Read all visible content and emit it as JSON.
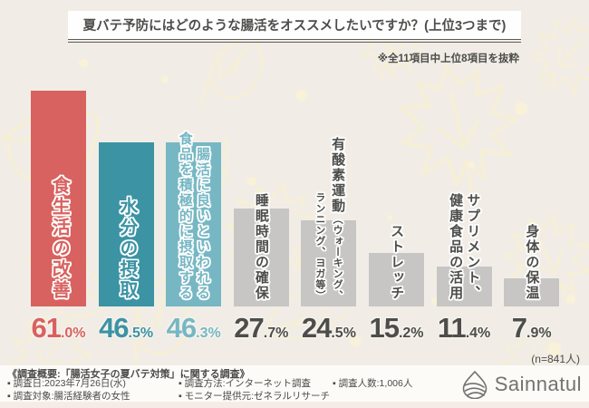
{
  "header": {
    "title": "夏バテ予防にはどのような腸活をオススメしたいですか？(上位3つまで)",
    "note": "※全11項目中上位8項目を抜粋"
  },
  "chart_data": {
    "type": "bar",
    "title": "夏バテ予防にはどのような腸活をオススメしたいですか？(上位3つまで)",
    "unit": "%",
    "ylim": [
      0,
      65
    ],
    "grid": false,
    "legend": "none",
    "sample_note": "(n=841人)",
    "categories": [
      "食生活の改善",
      "水分の摂取",
      "腸活に良いといわれる食品を積極的に摂取する",
      "睡眠時間の確保",
      "有酸素運動（ウォーキング、ランニング、ヨガ等）",
      "ストレッチ",
      "サプリメント、健康食品の活用",
      "身体の保温"
    ],
    "values": [
      61.0,
      46.5,
      46.3,
      27.7,
      24.5,
      15.2,
      11.4,
      7.9
    ],
    "colors": [
      "#d8625f",
      "#3b93a4",
      "#76b7c3",
      "#c7c6c4",
      "#c7c6c4",
      "#c7c6c4",
      "#c7c6c4",
      "#c7c6c4"
    ],
    "bars": [
      {
        "label": "食生活の改善",
        "value": 61.0,
        "color": "#d8625f",
        "text_color": "#d8625f",
        "columns": [
          [
            {
              "text": "食生活の改善",
              "size": "lg"
            }
          ]
        ]
      },
      {
        "label": "水分の摂取",
        "value": 46.5,
        "color": "#3b93a4",
        "text_color": "#3b93a4",
        "columns": [
          [
            {
              "text": "水分の摂取",
              "size": "lg"
            }
          ]
        ]
      },
      {
        "label": "腸活に良いといわれる食品を積極的に摂取する",
        "value": 46.3,
        "color": "#76b7c3",
        "text_color": "#76b7c3",
        "columns": [
          [
            {
              "text": "腸活に良いといわれる",
              "size": "md"
            }
          ],
          [
            {
              "text": "食品を積極的に摂取する",
              "size": "md"
            }
          ]
        ]
      },
      {
        "label": "睡眠時間の確保",
        "value": 27.7,
        "color": "#c7c6c4",
        "text_color": "#4d4d4b",
        "columns": [
          [
            {
              "text": "睡眠時間の確保",
              "size": "md"
            }
          ]
        ]
      },
      {
        "label": "有酸素運動（ウォーキング、ランニング、ヨガ等）",
        "value": 24.5,
        "color": "#c7c6c4",
        "text_color": "#4d4d4b",
        "columns": [
          [
            {
              "text": "有酸素運動",
              "size": "md"
            },
            {
              "text": "（ウォーキング、",
              "size": "sm"
            }
          ],
          [
            {
              "text": "ランニング、ヨガ等）",
              "size": "sm"
            }
          ]
        ]
      },
      {
        "label": "ストレッチ",
        "value": 15.2,
        "color": "#c7c6c4",
        "text_color": "#4d4d4b",
        "columns": [
          [
            {
              "text": "ストレッチ",
              "size": "md"
            }
          ]
        ]
      },
      {
        "label": "サプリメント、健康食品の活用",
        "value": 11.4,
        "color": "#c7c6c4",
        "text_color": "#4d4d4b",
        "columns": [
          [
            {
              "text": "サプリメント、",
              "size": "md"
            }
          ],
          [
            {
              "text": "健康食品の活用",
              "size": "md"
            }
          ]
        ]
      },
      {
        "label": "身体の保温",
        "value": 7.9,
        "color": "#c7c6c4",
        "text_color": "#4d4d4b",
        "columns": [
          [
            {
              "text": "身体の保温",
              "size": "md"
            }
          ]
        ]
      }
    ]
  },
  "footer": {
    "summary": "《調査概要:「腸活女子の夏バテ対策」に関する調査》",
    "items": [
      "▪ 調査日:2023年7月26日(水)",
      "▪ 調査対象:腸活経験者の女性",
      "▪ 調査方法:インターネット調査",
      "▪ モニター提供元:ゼネラルリサーチ",
      "▪ 調査人数:1,006人"
    ],
    "logo_text": "Sainnatul"
  },
  "colors": {
    "background": "#f1ede6",
    "accent_red": "#d8625f",
    "accent_teal": "#3b93a4",
    "accent_light_teal": "#76b7c3",
    "bar_gray": "#c7c6c4",
    "text_dark": "#4d4d4b",
    "deco_leaf": "#f7efd2",
    "footer_bg": "#fcfbf8"
  }
}
